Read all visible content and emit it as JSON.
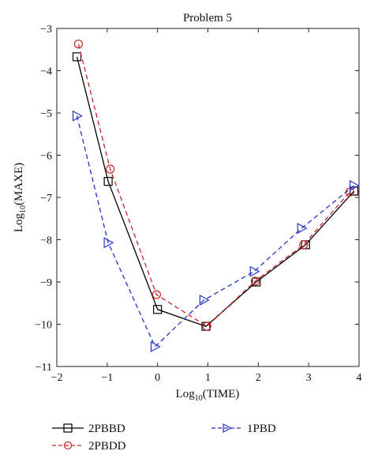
{
  "chart_data": {
    "type": "line",
    "title": "Problem 5",
    "xlabel": {
      "base": "Log",
      "sub": "10",
      "rest": "(TIME)"
    },
    "ylabel": {
      "base": "Log",
      "sub": "10",
      "rest": "(MAXE)"
    },
    "xlim": [
      -2,
      4
    ],
    "ylim": [
      -11,
      -3
    ],
    "xticks": [
      -2,
      -1,
      0,
      1,
      2,
      3,
      4
    ],
    "yticks": [
      -11,
      -10,
      -9,
      -8,
      -7,
      -6,
      -5,
      -4,
      -3
    ],
    "xtick_labels": [
      "−2",
      "−1",
      "0",
      "1",
      "2",
      "3",
      "4"
    ],
    "ytick_labels": [
      "−11",
      "−10",
      "−9",
      "−8",
      "−7",
      "−6",
      "−5",
      "−4",
      "−3"
    ],
    "grid": false,
    "legend_position": "below",
    "series": [
      {
        "name": "2PBBD",
        "color": "#000000",
        "line_style": "solid",
        "marker": "square",
        "x": [
          -1.6,
          -0.98,
          0.0,
          0.96,
          1.96,
          2.94,
          3.9
        ],
        "y": [
          -3.67,
          -6.62,
          -9.65,
          -10.05,
          -9.0,
          -8.12,
          -6.85
        ]
      },
      {
        "name": "2PBDD",
        "color": "#cc2222",
        "line_style": "dashed",
        "marker": "circle",
        "x": [
          -1.57,
          -0.94,
          -0.02,
          0.98,
          1.94,
          2.9,
          3.82
        ],
        "y": [
          -3.37,
          -6.33,
          -9.3,
          -10.05,
          -8.98,
          -8.12,
          -6.87
        ]
      },
      {
        "name": "1PBD",
        "color": "#2233cc",
        "line_style": "dashed",
        "marker": "triangle-right",
        "x": [
          -1.6,
          -0.98,
          -0.05,
          0.92,
          1.92,
          2.86,
          3.9
        ],
        "y": [
          -5.07,
          -8.07,
          -10.53,
          -9.43,
          -8.75,
          -7.73,
          -6.72
        ]
      }
    ]
  }
}
